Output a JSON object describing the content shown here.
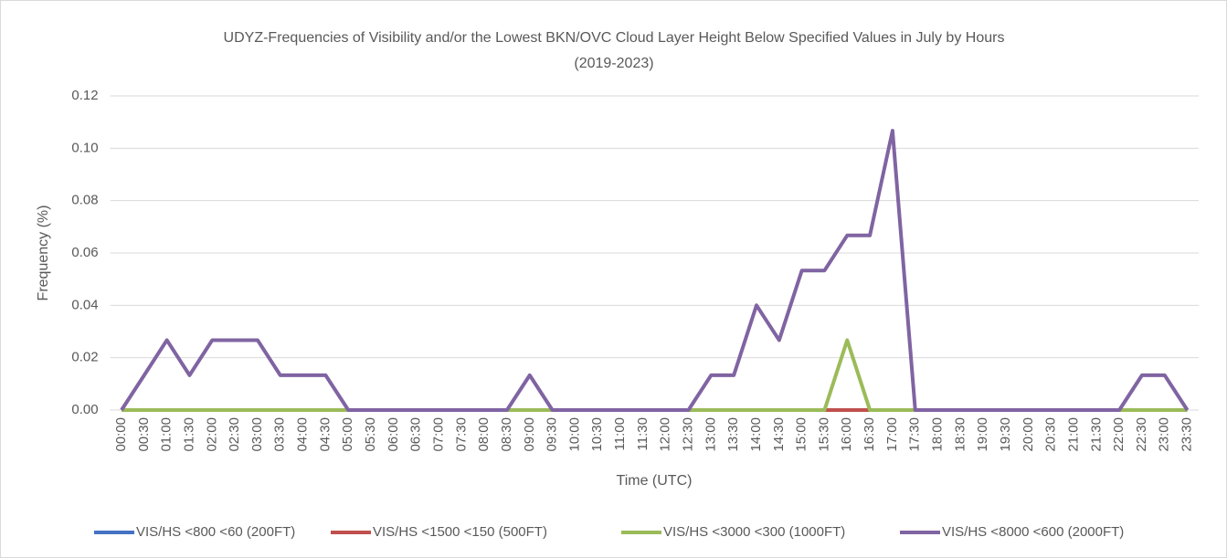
{
  "chart_data": {
    "type": "line",
    "title": "UDYZ-Frequencies of Visibility and/or the Lowest BKN/OVC Cloud Layer Height Below Specified Values in July by Hours",
    "subtitle": "(2019-2023)",
    "x_label": "Time (UTC)",
    "y_label": "Frequency (%)",
    "categories": [
      "00:00",
      "00:30",
      "01:00",
      "01:30",
      "02:00",
      "02:30",
      "03:00",
      "03:30",
      "04:00",
      "04:30",
      "05:00",
      "05:30",
      "06:00",
      "06:30",
      "07:00",
      "07:30",
      "08:00",
      "08:30",
      "09:00",
      "09:30",
      "10:00",
      "10:30",
      "11:00",
      "11:30",
      "12:00",
      "12:30",
      "13:00",
      "13:30",
      "14:00",
      "14:30",
      "15:00",
      "15:30",
      "16:00",
      "16:30",
      "17:00",
      "17:30",
      "18:00",
      "18:30",
      "19:00",
      "19:30",
      "20:00",
      "20:30",
      "21:00",
      "21:30",
      "22:00",
      "22:30",
      "23:00",
      "23:30"
    ],
    "series": [
      {
        "name": "VIS/HS <800 <60 (200FT)",
        "color": "#4472c4",
        "values": [
          0,
          0,
          0,
          0,
          0,
          0,
          0,
          0,
          0,
          0,
          0,
          0,
          0,
          0,
          0,
          0,
          0,
          0,
          0,
          0,
          0,
          0,
          0,
          0,
          0,
          0,
          0,
          0,
          0,
          0,
          0,
          0,
          0,
          0,
          0,
          0,
          0,
          0,
          0,
          0,
          0,
          0,
          0,
          0,
          0,
          0,
          0,
          0
        ]
      },
      {
        "name": "VIS/HS <1500 <150  (500FT)",
        "color": "#c0504d",
        "values": [
          0,
          0,
          0,
          0,
          0,
          0,
          0,
          0,
          0,
          0,
          0,
          0,
          0,
          0,
          0,
          0,
          0,
          0,
          0,
          0,
          0,
          0,
          0,
          0,
          0,
          0,
          0,
          0,
          0,
          0,
          0,
          0,
          0,
          0,
          0,
          0,
          0,
          0,
          0,
          0,
          0,
          0,
          0,
          0,
          0,
          0,
          0,
          0
        ]
      },
      {
        "name": "VIS/HS <3000 <300 (1000FT)",
        "color": "#9bbb59",
        "values": [
          0,
          0,
          0,
          0,
          0,
          0,
          0,
          0,
          0,
          0,
          0,
          0,
          0,
          0,
          0,
          0,
          0,
          0,
          0,
          0,
          0,
          0,
          0,
          0,
          0,
          0,
          0,
          0,
          0,
          0,
          0,
          0,
          0.0267,
          0,
          0,
          0,
          0,
          0,
          0,
          0,
          0,
          0,
          0,
          0,
          0,
          0,
          0,
          0
        ]
      },
      {
        "name": "VIS/HS <8000 <600 (2000FT)",
        "color": "#8064a2",
        "values": [
          0,
          0.0133,
          0.0267,
          0.0133,
          0.0267,
          0.0267,
          0.0267,
          0.0133,
          0.0133,
          0.0133,
          0,
          0,
          0,
          0,
          0,
          0,
          0,
          0,
          0.0133,
          0,
          0,
          0,
          0,
          0,
          0,
          0,
          0.0133,
          0.0133,
          0.04,
          0.0267,
          0.0533,
          0.0533,
          0.0667,
          0.0667,
          0.1067,
          0,
          0,
          0,
          0,
          0,
          0,
          0,
          0,
          0,
          0,
          0.0133,
          0.0133,
          0
        ]
      }
    ],
    "ylim": [
      0,
      0.12
    ],
    "yticks": [
      {
        "value": 0,
        "label": "0.00"
      },
      {
        "value": 0.02,
        "label": "0.02"
      },
      {
        "value": 0.04,
        "label": "0.04"
      },
      {
        "value": 0.06,
        "label": "0.06"
      },
      {
        "value": 0.08,
        "label": "0.08"
      },
      {
        "value": 0.1,
        "label": "0.10"
      },
      {
        "value": 0.12,
        "label": "0.12"
      }
    ],
    "grid": true,
    "legend": "bottom"
  }
}
